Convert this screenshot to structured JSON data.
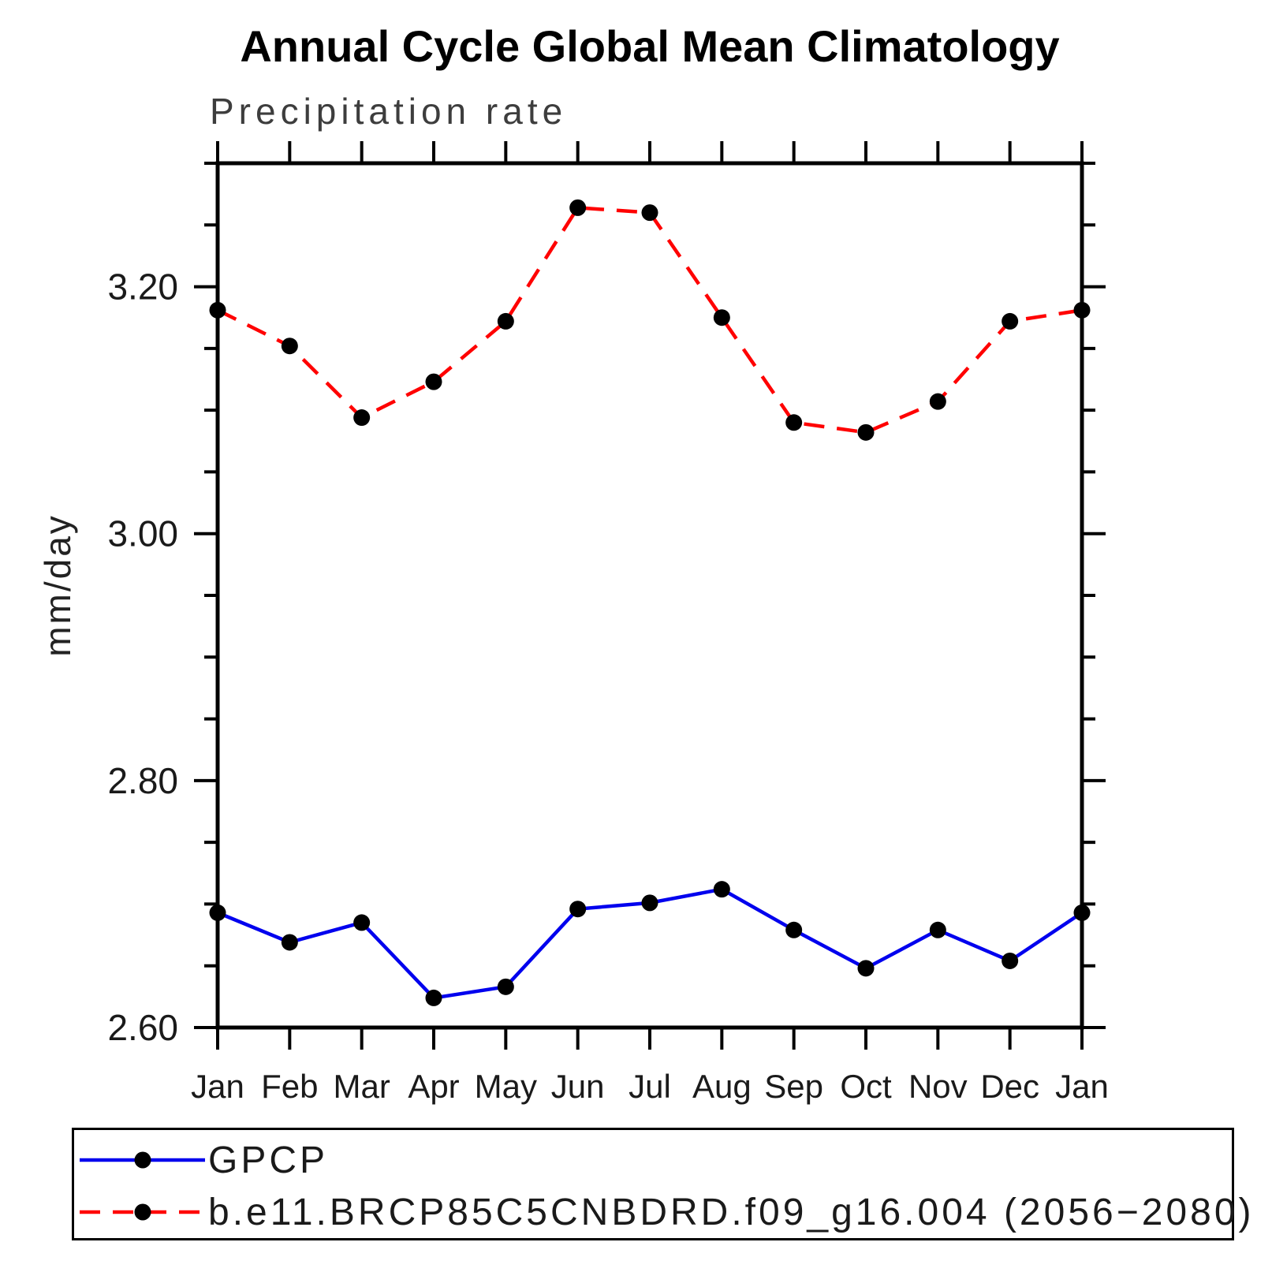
{
  "title": "Annual Cycle Global Mean Climatology",
  "subtitle": "Precipitation rate",
  "y_axis_label": "mm/day",
  "legend": {
    "position": "bottom-left-box",
    "entries": [
      {
        "label": "GPCP"
      },
      {
        "label": "b.e11.BRCP85C5CNBDRD.f09_g16.004 (2056−2080)"
      }
    ]
  },
  "colors": {
    "gpcp_line": "#0000ee",
    "model_line": "#ff0000",
    "marker": "#000000",
    "axis": "#000000",
    "background": "#ffffff"
  },
  "chart_data": {
    "type": "line",
    "title": "Annual Cycle Global Mean Climatology",
    "subtitle": "Precipitation rate",
    "xlabel": "",
    "ylabel": "mm/day",
    "x_tick_labels": [
      "Jan",
      "Feb",
      "Mar",
      "Apr",
      "May",
      "Jun",
      "Jul",
      "Aug",
      "Sep",
      "Oct",
      "Nov",
      "Dec",
      "Jan"
    ],
    "ylim": [
      2.6,
      3.3
    ],
    "y_major_ticks": [
      2.6,
      2.8,
      3.0,
      3.2
    ],
    "y_major_tick_labels": [
      "2.60",
      "2.80",
      "3.00",
      "3.20"
    ],
    "y_minor_tick_interval": 0.05,
    "grid": false,
    "legend_position": "bottom-left-box",
    "series": [
      {
        "name": "GPCP",
        "color": "#0000ee",
        "line_style": "solid",
        "marker": "filled-circle",
        "marker_color": "#000000",
        "values": [
          2.693,
          2.669,
          2.685,
          2.624,
          2.633,
          2.696,
          2.701,
          2.712,
          2.679,
          2.648,
          2.679,
          2.654,
          2.693
        ]
      },
      {
        "name": "b.e11.BRCP85C5CNBDRD.f09_g16.004 (2056−2080)",
        "color": "#ff0000",
        "line_style": "dashed",
        "marker": "filled-circle",
        "marker_color": "#000000",
        "values": [
          3.181,
          3.152,
          3.094,
          3.123,
          3.172,
          3.264,
          3.26,
          3.175,
          3.09,
          3.082,
          3.107,
          3.172,
          3.181
        ]
      }
    ]
  }
}
